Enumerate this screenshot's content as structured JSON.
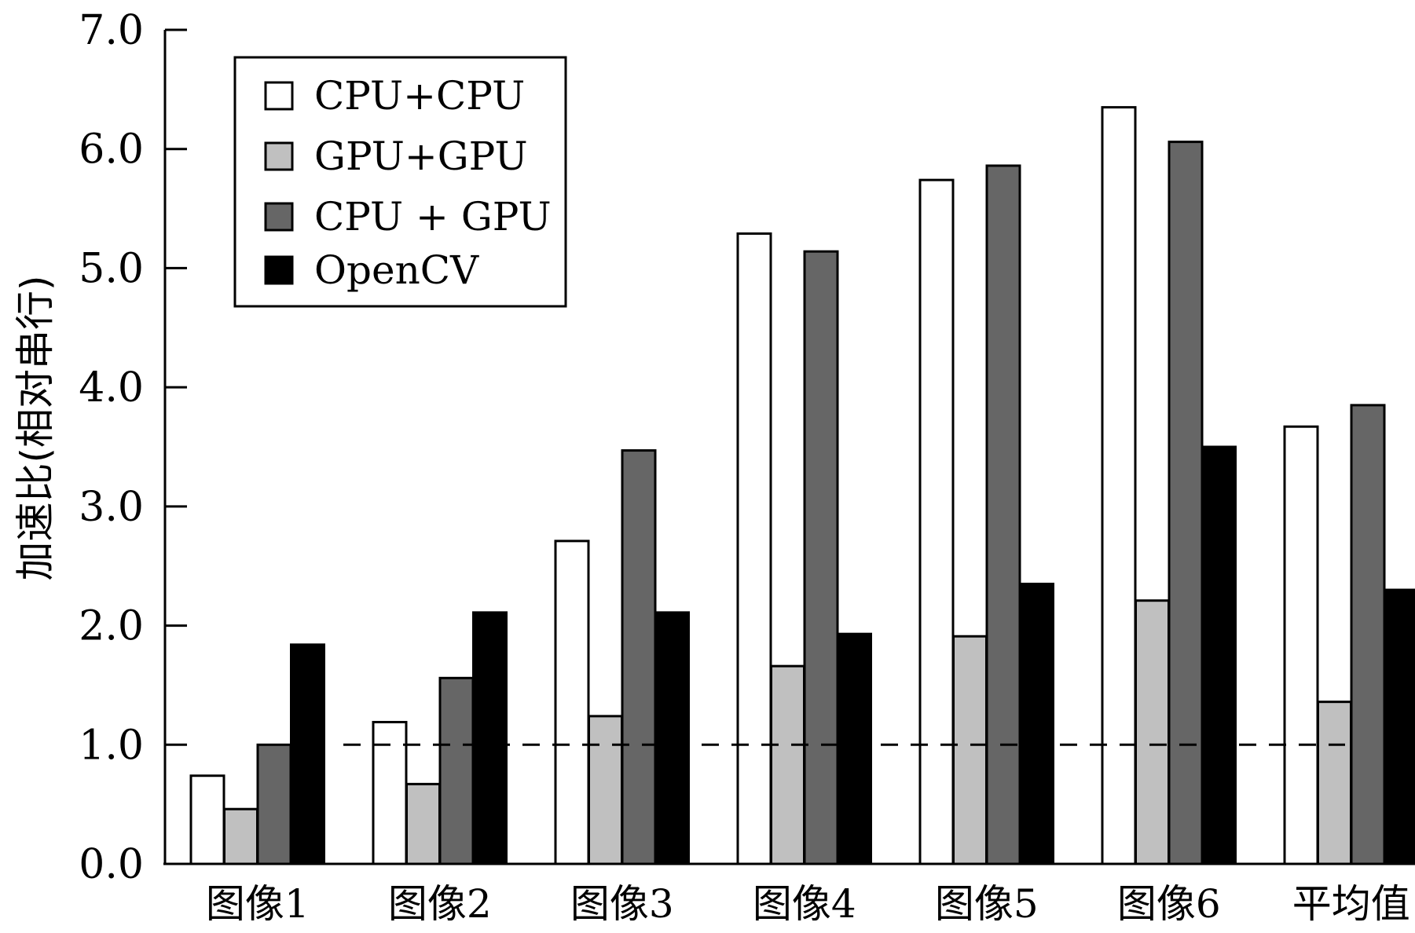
{
  "chart_data": {
    "type": "bar",
    "title": "",
    "xlabel": "",
    "ylabel": "加速比(相对串行)",
    "ylim": [
      0,
      7
    ],
    "yticks": [
      "0.0",
      "1.0",
      "2.0",
      "3.0",
      "4.0",
      "5.0",
      "6.0",
      "7.0"
    ],
    "categories": [
      "图像1",
      "图像2",
      "图像3",
      "图像4",
      "图像5",
      "图像6",
      "平均值"
    ],
    "series": [
      {
        "name": "CPU+CPU",
        "color": "#ffffff",
        "values": [
          0.74,
          1.19,
          2.71,
          5.29,
          5.74,
          6.35,
          3.67
        ]
      },
      {
        "name": "GPU+GPU",
        "color": "#c0c0c0",
        "values": [
          0.46,
          0.67,
          1.24,
          1.66,
          1.91,
          2.21,
          1.36
        ]
      },
      {
        "name": "CPU + GPU",
        "color": "#666666",
        "values": [
          1.0,
          1.56,
          3.47,
          5.14,
          5.86,
          6.06,
          3.85
        ]
      },
      {
        "name": "OpenCV",
        "color": "#000000",
        "values": [
          1.84,
          2.11,
          2.11,
          1.93,
          2.35,
          3.5,
          2.3
        ]
      }
    ],
    "reference_line": {
      "value": 1.0,
      "style": "dashed"
    },
    "legend_position": "top-left",
    "grid": false
  }
}
